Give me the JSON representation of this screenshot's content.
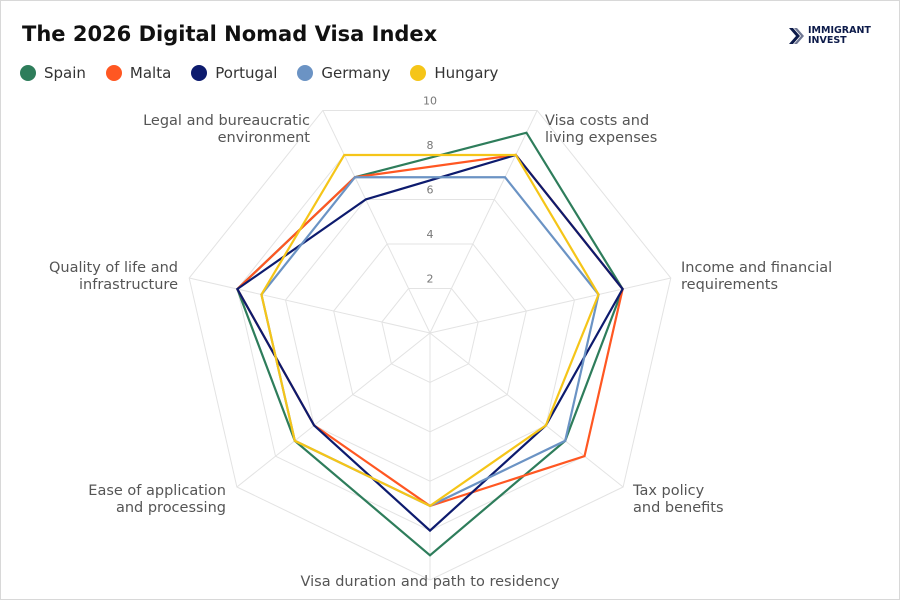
{
  "title": "The 2026 Digital Nomad Visa Index",
  "logo": {
    "line1": "IMMIGRANT",
    "line2": "INVEST"
  },
  "chart_data": {
    "type": "radar",
    "title": "The 2026 Digital Nomad Visa Index",
    "axes": [
      "Legal and bureaucratic environment",
      "Visa costs and living expenses",
      "Income and financial requirements",
      "Tax policy and benefits",
      "Visa duration and path to residency",
      "Ease of application and processing",
      "Quality of life and infrastructure"
    ],
    "axis_labels_display": [
      "Legal and bureaucratic\nenvironment",
      "Visa costs and\nliving expenses",
      "Income and financial\nrequirements",
      "Tax policy\nand benefits",
      "Visa duration and path to residency",
      "Ease of application\nand processing",
      "Quality of life and\ninfrastructure"
    ],
    "range": [
      0,
      10
    ],
    "ticks": [
      "2",
      "4",
      "6",
      "8",
      "10"
    ],
    "grid": true,
    "legend_position": "top-left",
    "series": [
      {
        "name": "Spain",
        "color": "#2e7d5b",
        "values": [
          7,
          9,
          8,
          7,
          9,
          7,
          8
        ]
      },
      {
        "name": "Malta",
        "color": "#ff5722",
        "values": [
          7,
          8,
          8,
          8,
          7,
          6,
          8
        ]
      },
      {
        "name": "Portugal",
        "color": "#0d1b6e",
        "values": [
          6,
          8,
          8,
          6,
          8,
          6,
          8
        ]
      },
      {
        "name": "Germany",
        "color": "#6b93c4",
        "values": [
          7,
          7,
          7,
          7,
          7,
          7,
          7
        ]
      },
      {
        "name": "Hungary",
        "color": "#f5c518",
        "values": [
          8,
          8,
          7,
          6,
          7,
          7,
          7
        ]
      }
    ]
  }
}
